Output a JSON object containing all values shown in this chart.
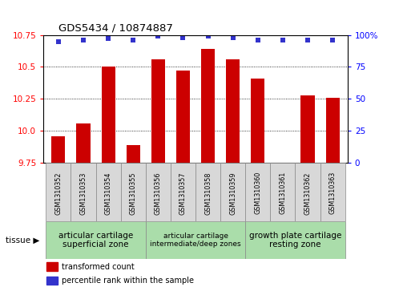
{
  "title": "GDS5434 / 10874887",
  "samples": [
    "GSM1310352",
    "GSM1310353",
    "GSM1310354",
    "GSM1310355",
    "GSM1310356",
    "GSM1310357",
    "GSM1310358",
    "GSM1310359",
    "GSM1310360",
    "GSM1310361",
    "GSM1310362",
    "GSM1310363"
  ],
  "bar_values": [
    9.96,
    10.06,
    10.5,
    9.89,
    10.56,
    10.47,
    10.64,
    10.56,
    10.41,
    9.75,
    10.28,
    10.26
  ],
  "percentile_values": [
    95,
    96,
    97,
    96,
    99,
    98,
    99,
    98,
    96,
    96,
    96,
    96
  ],
  "ylim_left": [
    9.75,
    10.75
  ],
  "ylim_right": [
    0,
    100
  ],
  "yticks_left": [
    9.75,
    10.0,
    10.25,
    10.5,
    10.75
  ],
  "yticks_right": [
    0,
    25,
    50,
    75,
    100
  ],
  "bar_color": "#cc0000",
  "dot_color": "#3333cc",
  "tissue_groups": [
    {
      "label": "articular cartilage\nsuperficial zone",
      "start": 0,
      "end": 3,
      "color": "#aaddaa",
      "fontsize": 7.5
    },
    {
      "label": "articular cartilage\nintermediate/deep zones",
      "start": 4,
      "end": 7,
      "color": "#aaddaa",
      "fontsize": 6.5
    },
    {
      "label": "growth plate cartilage\nresting zone",
      "start": 8,
      "end": 11,
      "color": "#aaddaa",
      "fontsize": 7.5
    }
  ],
  "legend_red_label": "transformed count",
  "legend_blue_label": "percentile rank within the sample",
  "tissue_label": "tissue",
  "bar_width": 0.55
}
